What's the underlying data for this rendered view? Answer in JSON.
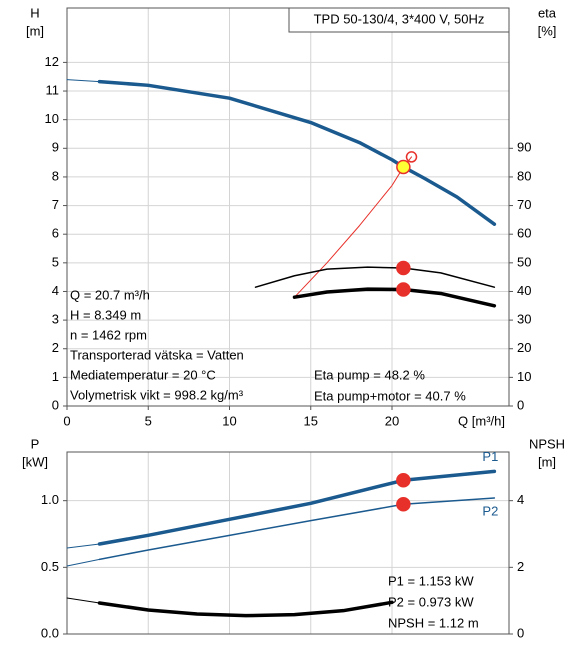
{
  "chart_data": [
    {
      "type": "line",
      "title": "TPD 50-130/4, 3*400 V, 50Hz",
      "ylabel": [
        "H",
        "[m]"
      ],
      "y2label": [
        "eta",
        "[%]"
      ],
      "xlabel": "Q [m³/h]",
      "xlim": [
        0,
        27.2
      ],
      "xticks": [
        0,
        5,
        10,
        15,
        20
      ],
      "xtick_labels": true,
      "ylim": [
        0,
        13.9
      ],
      "yticks": [
        0,
        1,
        2,
        3,
        4,
        5,
        6,
        7,
        8,
        9,
        10,
        11,
        12
      ],
      "y2lim": [
        0,
        139
      ],
      "y2ticks": [
        0,
        10,
        20,
        30,
        40,
        50,
        60,
        70,
        80,
        90
      ],
      "grid": true,
      "series": [
        {
          "color": "#1b5a8f",
          "width": 1,
          "x": [
            0,
            2
          ],
          "values": [
            11.4,
            11.33
          ]
        },
        {
          "color": "#1b5a8f",
          "width": 3.5,
          "x": [
            2,
            5,
            10,
            15,
            18,
            20,
            20.7,
            22,
            24,
            26.3
          ],
          "values": [
            11.33,
            11.2,
            10.75,
            9.9,
            9.2,
            8.6,
            8.349,
            7.95,
            7.3,
            6.35
          ]
        },
        {
          "color": "#e8302a",
          "width": 1,
          "axis": "y2",
          "x": [
            14,
            16,
            18,
            20,
            20.7,
            21.2
          ],
          "values": [
            38,
            50,
            63,
            77,
            83.4,
            87
          ]
        },
        {
          "color": "#000000",
          "width": 1.5,
          "axis": "y2",
          "x": [
            11.6,
            14,
            16,
            18.5,
            20.7,
            23,
            26.3
          ],
          "values": [
            41.5,
            45.5,
            47.8,
            48.5,
            48.2,
            46.5,
            41.5
          ]
        },
        {
          "color": "#000000",
          "width": 3.5,
          "axis": "y2",
          "x": [
            14,
            16,
            18.5,
            20.7,
            23,
            26.3
          ],
          "values": [
            38,
            39.8,
            40.8,
            40.7,
            39.3,
            35
          ]
        }
      ],
      "points": [
        {
          "x": 20.7,
          "y": 48.2,
          "axis": "y2",
          "color": "#e8302a",
          "fill": "#e8302a"
        },
        {
          "x": 20.7,
          "y": 40.7,
          "axis": "y2",
          "color": "#e8302a",
          "fill": "#e8302a"
        },
        {
          "x": 20.7,
          "y": 8.349,
          "color": "#e8302a",
          "fill": "#ffff33"
        },
        {
          "x": 21.2,
          "y": 87,
          "axis": "y2",
          "color": "#e8302a",
          "fill": "none"
        }
      ],
      "notes_left": [
        "Q = 20.7 m³/h",
        "H = 8.349 m",
        "n = 1462 rpm",
        "Transporterad vätska = Vatten",
        "Mediatemperatur = 20 °C",
        "Volymetrisk vikt = 998.2 kg/m³"
      ],
      "notes_right": [
        "Eta pump = 48.2 %",
        "Eta pump+motor = 40.7 %"
      ]
    },
    {
      "type": "line",
      "ylabel": [
        "P",
        "[kW]"
      ],
      "y2label": [
        "NPSH",
        "[m]"
      ],
      "xlim": [
        0,
        27.2
      ],
      "xticks": [
        0,
        5,
        10,
        15,
        20
      ],
      "xtick_labels": false,
      "ylim": [
        0,
        1.365
      ],
      "yticks": [
        {
          "value": 0,
          "label": "0.0"
        },
        0.5,
        {
          "value": 1,
          "label": "1.0"
        }
      ],
      "y2lim": [
        0,
        5.46
      ],
      "y2ticks": [
        0,
        2,
        4
      ],
      "grid": true,
      "series": [
        {
          "color": "#1b5a8f",
          "width": 1,
          "x": [
            0,
            2
          ],
          "values": [
            0.645,
            0.675
          ]
        },
        {
          "name": "P1",
          "color": "#1b5a8f",
          "width": 3.5,
          "x": [
            2,
            5,
            10,
            15,
            20.7,
            26.3
          ],
          "values": [
            0.675,
            0.74,
            0.86,
            0.98,
            1.153,
            1.22
          ]
        },
        {
          "color": "#1b5a8f",
          "width": 1,
          "x": [
            0,
            2
          ],
          "values": [
            0.51,
            0.56
          ]
        },
        {
          "name": "P2",
          "color": "#1b5a8f",
          "width": 1.5,
          "x": [
            2,
            5,
            10,
            15,
            20.7,
            26.3
          ],
          "values": [
            0.56,
            0.63,
            0.74,
            0.85,
            0.973,
            1.02
          ]
        },
        {
          "color": "#000000",
          "width": 1,
          "axis": "y2",
          "x": [
            0,
            2
          ],
          "values": [
            1.08,
            0.93
          ]
        },
        {
          "color": "#000000",
          "width": 3.5,
          "axis": "y2",
          "x": [
            2,
            5,
            8,
            11,
            14,
            17,
            20
          ],
          "values": [
            0.93,
            0.72,
            0.6,
            0.55,
            0.58,
            0.7,
            0.95
          ]
        }
      ],
      "points": [
        {
          "x": 20.7,
          "y": 1.153,
          "color": "#e8302a",
          "fill": "#e8302a"
        },
        {
          "x": 20.7,
          "y": 0.973,
          "color": "#e8302a",
          "fill": "#e8302a"
        }
      ],
      "notes_right": [
        "P1 = 1.153 kW",
        "P2 = 0.973 kW",
        "NPSH = 1.12 m"
      ]
    }
  ]
}
